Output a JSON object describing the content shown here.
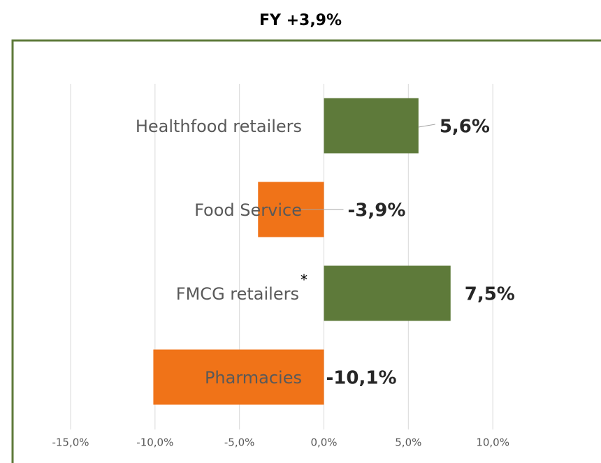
{
  "chart_data": {
    "type": "hbar",
    "title": "FY +3,9%",
    "categories": [
      "Healthfood retailers",
      "Food Service",
      "FMCG retailers",
      "Pharmacies"
    ],
    "category_marker": {
      "index": 2,
      "text": "*"
    },
    "values": [
      5.6,
      -3.9,
      7.5,
      -10.1
    ],
    "value_labels": [
      "5,6%",
      "-3,9%",
      "7,5%",
      "-10,1%"
    ],
    "positive_color": "#5e7a3a",
    "negative_color": "#f07318",
    "xlim": [
      -15,
      15
    ],
    "xticks": [
      {
        "value": -15,
        "label": "-15,0%"
      },
      {
        "value": -10,
        "label": "-10,0%"
      },
      {
        "value": -5,
        "label": "-5,0%"
      },
      {
        "value": 0,
        "label": "0,0%"
      },
      {
        "value": 5,
        "label": "5,0%"
      },
      {
        "value": 10,
        "label": "10,0%"
      }
    ],
    "grid": true
  }
}
